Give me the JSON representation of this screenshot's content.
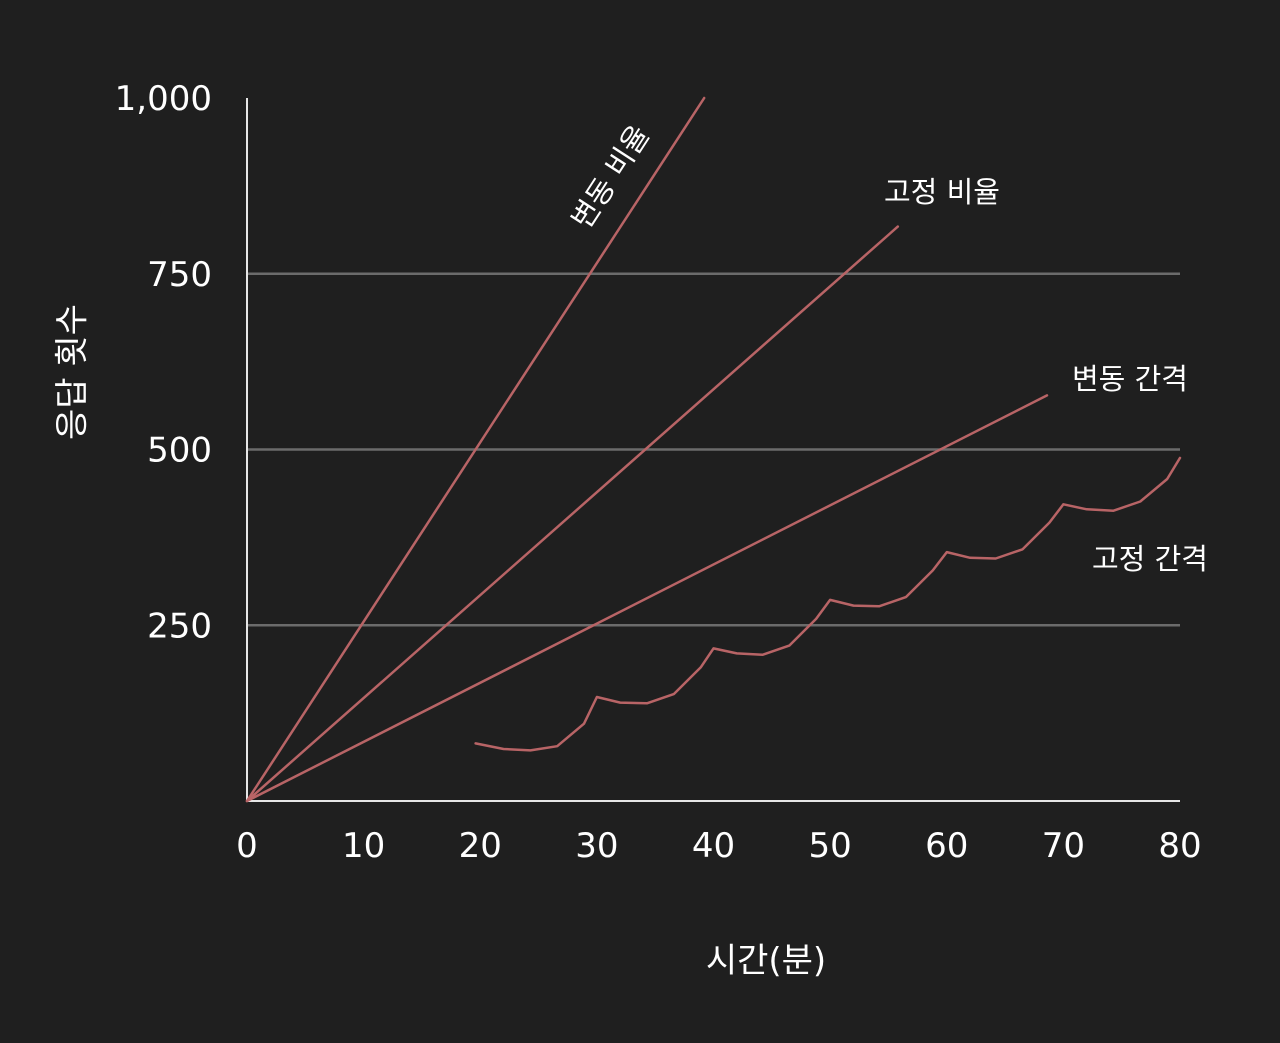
{
  "colors": {
    "background": "#1f1f1f",
    "series": "#b86466",
    "grid": "#6b6b6b",
    "axis": "#e6e6e6",
    "text": "#ffffff"
  },
  "chart_data": {
    "type": "line",
    "xlabel": "시간(분)",
    "ylabel": "응답 횟수",
    "xlim": [
      0,
      80
    ],
    "ylim": [
      0,
      1000
    ],
    "x_ticks": [
      "0",
      "10",
      "20",
      "30",
      "40",
      "50",
      "60",
      "70",
      "80"
    ],
    "y_ticks": [
      "1,000",
      "750",
      "500",
      "250"
    ],
    "y_tick_values": [
      1000,
      750,
      500,
      250
    ],
    "grid": "horizontal at 250, 500, 750",
    "series": [
      {
        "name": "변동 비율",
        "points": [
          [
            0,
            0
          ],
          [
            39.2,
            1000
          ]
        ]
      },
      {
        "name": "고정 비율",
        "points": [
          [
            0,
            0
          ],
          [
            55.8,
            817
          ]
        ]
      },
      {
        "name": "변동 간격",
        "points": [
          [
            0,
            0
          ],
          [
            68.6,
            577
          ]
        ]
      },
      {
        "name": "고정 간격",
        "points": [
          [
            19.6,
            82
          ],
          [
            22.0,
            74
          ],
          [
            24.3,
            72
          ],
          [
            26.6,
            78
          ],
          [
            28.9,
            110
          ],
          [
            30.0,
            148
          ],
          [
            32.0,
            140
          ],
          [
            34.3,
            139
          ],
          [
            36.6,
            152
          ],
          [
            38.9,
            190
          ],
          [
            40.0,
            217
          ],
          [
            42.0,
            210
          ],
          [
            44.2,
            208
          ],
          [
            46.5,
            221
          ],
          [
            48.8,
            259
          ],
          [
            50.0,
            286
          ],
          [
            52.0,
            278
          ],
          [
            54.2,
            277
          ],
          [
            56.5,
            290
          ],
          [
            58.8,
            328
          ],
          [
            60.0,
            354
          ],
          [
            62.0,
            346
          ],
          [
            64.2,
            345
          ],
          [
            66.5,
            358
          ],
          [
            68.8,
            396
          ],
          [
            70.0,
            422
          ],
          [
            72.0,
            415
          ],
          [
            74.3,
            413
          ],
          [
            76.6,
            426
          ],
          [
            78.9,
            458
          ],
          [
            80.0,
            488
          ]
        ]
      }
    ]
  }
}
